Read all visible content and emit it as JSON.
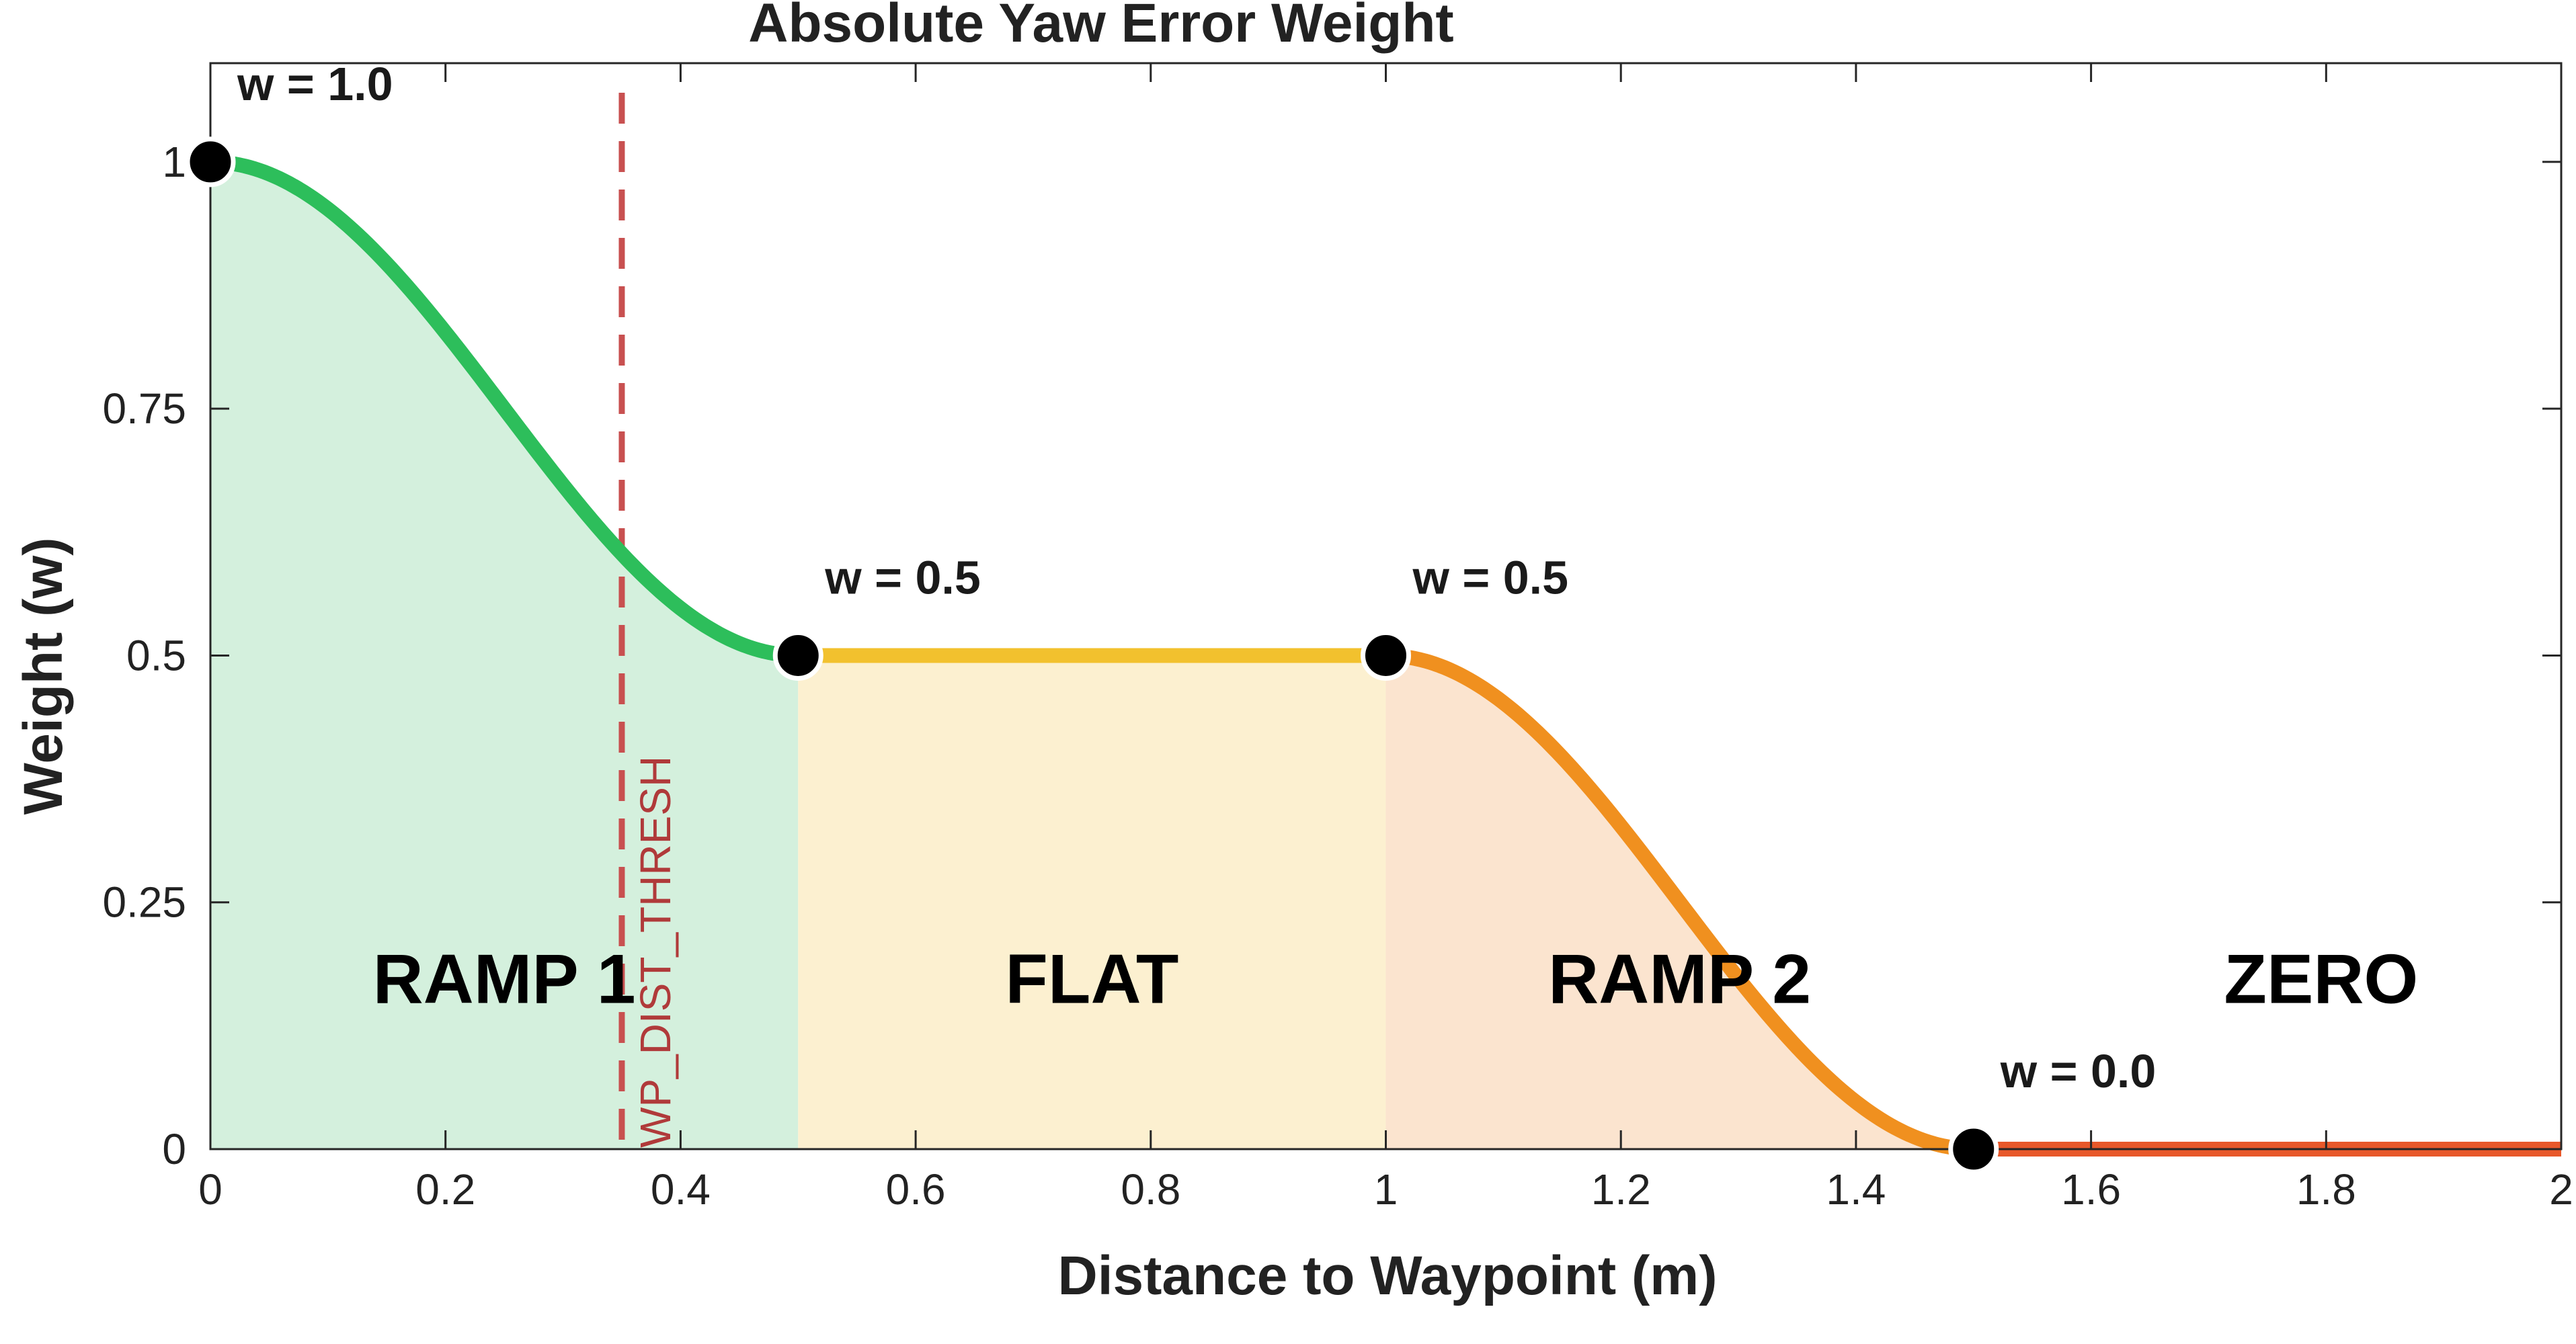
{
  "chart_data": {
    "type": "line",
    "title": "Absolute Yaw Error Weight",
    "xlabel": "Distance to Waypoint (m)",
    "ylabel": "Weight (w)",
    "xlim": [
      0,
      2
    ],
    "ylim": [
      0,
      1.1
    ],
    "grid": false,
    "x_ticks": [
      0,
      0.2,
      0.4,
      0.6,
      0.8,
      1,
      1.2,
      1.4,
      1.6,
      1.8,
      2
    ],
    "x_tick_labels": [
      "0",
      "0.2",
      "0.4",
      "0.6",
      "0.8",
      "1",
      "1.2",
      "1.4",
      "1.6",
      "1.8",
      "2"
    ],
    "y_ticks": [
      0,
      0.25,
      0.5,
      0.75,
      1
    ],
    "y_tick_labels": [
      "0",
      "0.25",
      "0.5",
      "0.75",
      "1"
    ],
    "regions": [
      {
        "label": "RAMP 1",
        "x_start": 0,
        "x_end": 0.5,
        "curve": "cosine",
        "w_start": 1.0,
        "w_end": 0.5,
        "line_color": "#2dbe5b",
        "fill_color": "#d4f0dd"
      },
      {
        "label": "FLAT",
        "x_start": 0.5,
        "x_end": 1.0,
        "curve": "constant",
        "w_start": 0.5,
        "w_end": 0.5,
        "line_color": "#f2c12e",
        "fill_color": "#fcf0d0"
      },
      {
        "label": "RAMP 2",
        "x_start": 1.0,
        "x_end": 1.5,
        "curve": "cosine",
        "w_start": 0.5,
        "w_end": 0.0,
        "line_color": "#f0901f",
        "fill_color": "#fbe4cf"
      },
      {
        "label": "ZERO",
        "x_start": 1.5,
        "x_end": 2.0,
        "curve": "constant",
        "w_start": 0.0,
        "w_end": 0.0,
        "line_color": "#e8582a",
        "fill_color": "#ffffff"
      }
    ],
    "key_points": [
      {
        "x": 0,
        "y": 1.0,
        "label": "w = 1.0"
      },
      {
        "x": 0.5,
        "y": 0.5,
        "label": "w = 0.5"
      },
      {
        "x": 1.0,
        "y": 0.5,
        "label": "w = 0.5"
      },
      {
        "x": 1.5,
        "y": 0.0,
        "label": "w = 0.0"
      }
    ],
    "threshold": {
      "x": 0.35,
      "label": "WP_DIST_THRESH",
      "color": "#c85050"
    }
  }
}
